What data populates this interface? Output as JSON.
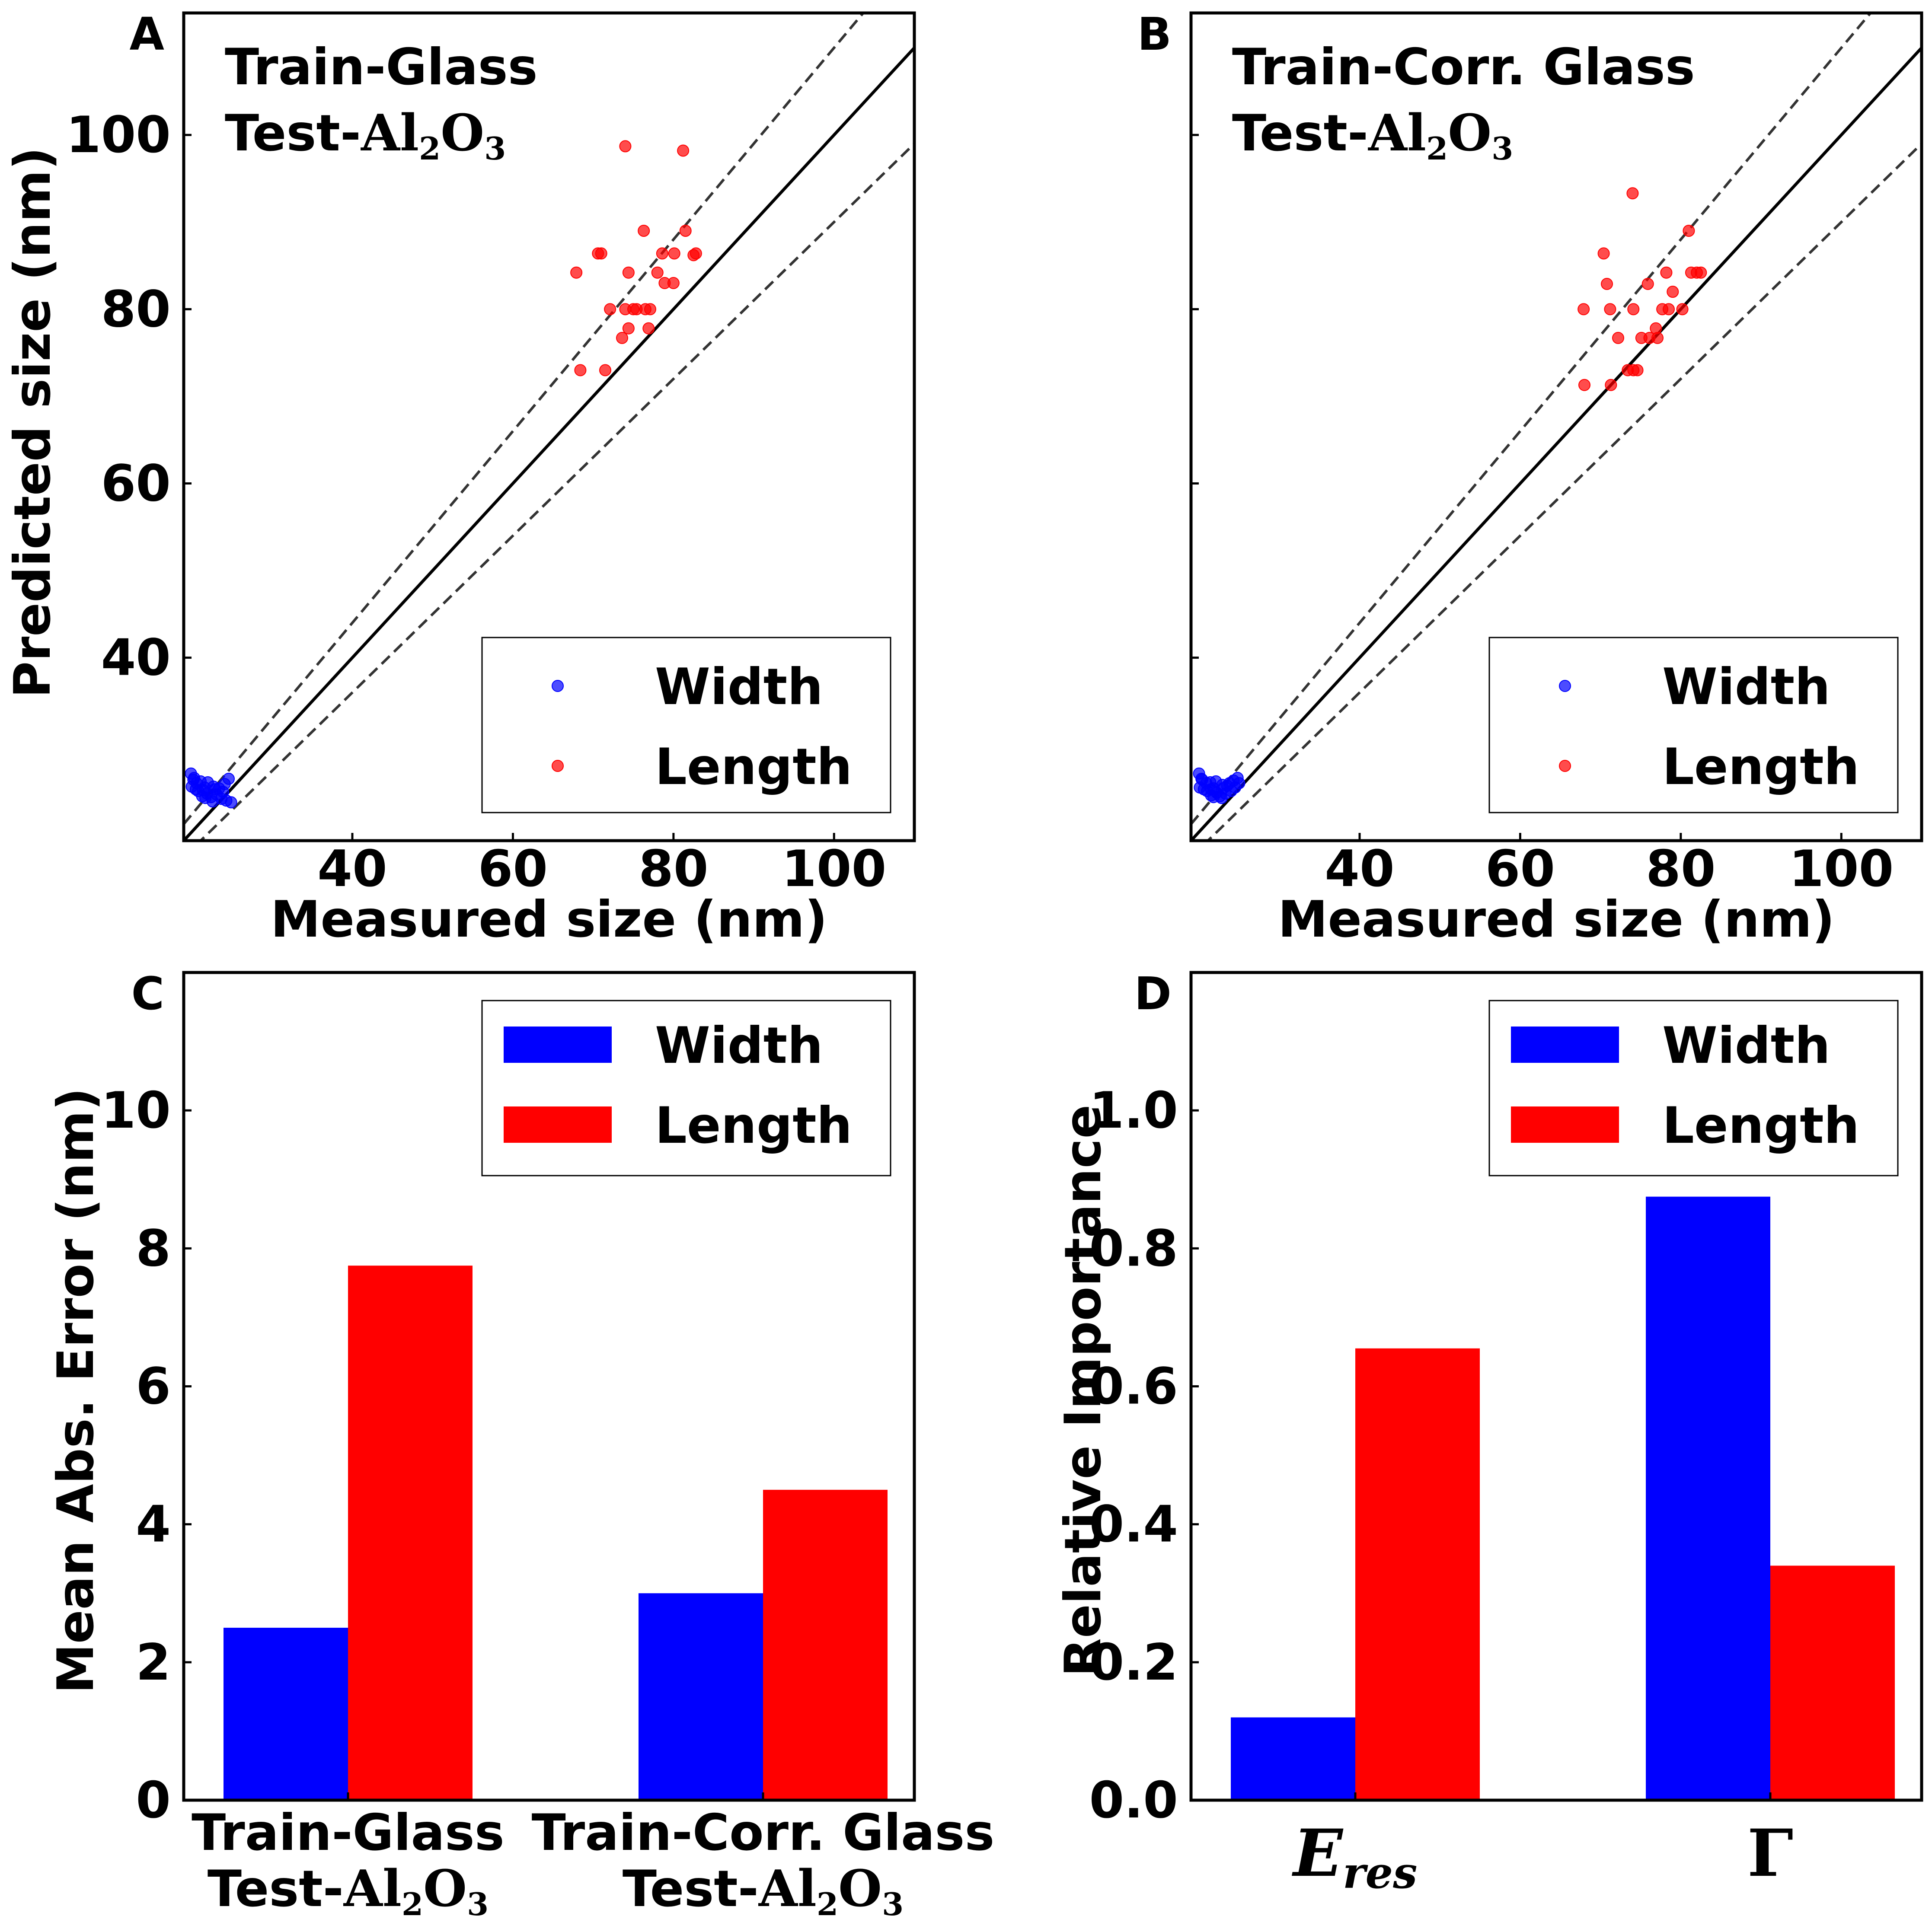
{
  "colors": {
    "width": "#0000ff",
    "length": "#ff0000",
    "axis": "#000000",
    "diag": "#333333"
  },
  "chart_data": [
    {
      "panel": "A",
      "type": "scatter",
      "annotation": {
        "line1": "Train-Glass",
        "line2_prefix": "Test-",
        "line2_formula": "Al2O3"
      },
      "xlabel": "Measured size (nm)",
      "ylabel": "Predicted size (nm)",
      "xlim": [
        19,
        110
      ],
      "ylim": [
        19,
        114
      ],
      "xticks": [
        40,
        60,
        80,
        100
      ],
      "yticks": [
        40,
        60,
        80,
        100
      ],
      "xtick_labels": [
        "40",
        "60",
        "80",
        "100"
      ],
      "ytick_labels": [
        "40",
        "60",
        "80",
        "100"
      ],
      "reference_lines": {
        "identity": "y = x",
        "bands": [
          "y = 1.1x",
          "y = 0.9x"
        ]
      },
      "legend": {
        "position": "lower-right",
        "entries": [
          "Width",
          "Length"
        ]
      },
      "series": [
        {
          "name": "Width",
          "color": "#0000ff",
          "points": [
            [
              19.9,
              26.7
            ],
            [
              20.3,
              26.2
            ],
            [
              20.6,
              25.6
            ],
            [
              21.1,
              25.8
            ],
            [
              20.0,
              25.2
            ],
            [
              20.8,
              24.7
            ],
            [
              21.6,
              25.1
            ],
            [
              21.9,
              24.4
            ],
            [
              22.4,
              24.0
            ],
            [
              21.3,
              24.1
            ],
            [
              22.9,
              24.9
            ],
            [
              23.1,
              24.3
            ],
            [
              23.7,
              23.8
            ],
            [
              24.1,
              25.5
            ],
            [
              24.6,
              26.1
            ],
            [
              24.3,
              23.6
            ],
            [
              20.5,
              24.9
            ],
            [
              22.0,
              25.7
            ],
            [
              23.4,
              25.0
            ],
            [
              21.7,
              23.9
            ],
            [
              22.6,
              23.5
            ],
            [
              20.2,
              26.0
            ],
            [
              23.9,
              24.6
            ],
            [
              21.4,
              24.8
            ],
            [
              22.7,
              25.2
            ],
            [
              24.9,
              23.4
            ]
          ]
        },
        {
          "name": "Length",
          "color": "#ff0000",
          "points": [
            [
              74.0,
              98.7
            ],
            [
              81.2,
              98.2
            ],
            [
              67.9,
              84.2
            ],
            [
              70.6,
              86.4
            ],
            [
              71.0,
              86.4
            ],
            [
              74.4,
              84.2
            ],
            [
              76.3,
              89.0
            ],
            [
              78.0,
              84.2
            ],
            [
              78.6,
              86.4
            ],
            [
              80.1,
              86.4
            ],
            [
              81.5,
              89.0
            ],
            [
              82.5,
              86.2
            ],
            [
              82.8,
              86.4
            ],
            [
              78.9,
              83.0
            ],
            [
              80.0,
              83.0
            ],
            [
              72.1,
              80.0
            ],
            [
              74.0,
              80.0
            ],
            [
              75.0,
              80.0
            ],
            [
              75.4,
              80.0
            ],
            [
              76.5,
              80.0
            ],
            [
              77.1,
              80.0
            ],
            [
              74.4,
              77.8
            ],
            [
              76.9,
              77.8
            ],
            [
              73.6,
              76.7
            ],
            [
              68.4,
              73.0
            ],
            [
              71.5,
              73.0
            ]
          ]
        }
      ]
    },
    {
      "panel": "B",
      "type": "scatter",
      "annotation": {
        "line1": "Train-Corr. Glass",
        "line2_prefix": "Test-",
        "line2_formula": "Al2O3"
      },
      "xlabel": "Measured size (nm)",
      "ylabel": "",
      "xlim": [
        19,
        110
      ],
      "ylim": [
        19,
        114
      ],
      "xticks": [
        40,
        60,
        80,
        100
      ],
      "yticks": [
        40,
        60,
        80,
        100
      ],
      "xtick_labels": [
        "40",
        "60",
        "80",
        "100"
      ],
      "ytick_labels": [],
      "reference_lines": {
        "identity": "y = x",
        "bands": [
          "y = 1.1x",
          "y = 0.9x"
        ]
      },
      "legend": {
        "position": "lower-right",
        "entries": [
          "Width",
          "Length"
        ]
      },
      "series": [
        {
          "name": "Width",
          "color": "#0000ff",
          "points": [
            [
              20.0,
              26.7
            ],
            [
              20.4,
              26.0
            ],
            [
              20.9,
              25.6
            ],
            [
              21.4,
              25.7
            ],
            [
              20.1,
              25.1
            ],
            [
              21.0,
              24.7
            ],
            [
              21.8,
              25.0
            ],
            [
              22.2,
              24.5
            ],
            [
              22.6,
              24.1
            ],
            [
              21.5,
              24.2
            ],
            [
              23.0,
              25.0
            ],
            [
              23.3,
              24.4
            ],
            [
              23.8,
              25.6
            ],
            [
              24.3,
              25.9
            ],
            [
              24.8,
              26.2
            ],
            [
              24.5,
              25.1
            ],
            [
              20.6,
              24.9
            ],
            [
              22.1,
              25.8
            ],
            [
              23.5,
              25.3
            ],
            [
              21.8,
              24.0
            ],
            [
              22.8,
              23.9
            ],
            [
              20.3,
              26.1
            ],
            [
              24.0,
              24.7
            ],
            [
              21.5,
              24.9
            ],
            [
              22.9,
              25.4
            ],
            [
              25.0,
              25.6
            ]
          ]
        },
        {
          "name": "Length",
          "color": "#ff0000",
          "points": [
            [
              74.0,
              93.3
            ],
            [
              81.0,
              89.0
            ],
            [
              70.4,
              86.4
            ],
            [
              70.8,
              82.9
            ],
            [
              75.9,
              82.9
            ],
            [
              78.2,
              84.2
            ],
            [
              81.3,
              84.2
            ],
            [
              82.0,
              84.2
            ],
            [
              82.5,
              84.2
            ],
            [
              67.9,
              80.0
            ],
            [
              71.2,
              80.0
            ],
            [
              74.1,
              80.0
            ],
            [
              77.7,
              80.0
            ],
            [
              78.5,
              80.0
            ],
            [
              80.2,
              80.0
            ],
            [
              76.9,
              77.8
            ],
            [
              72.2,
              76.7
            ],
            [
              75.1,
              76.7
            ],
            [
              76.1,
              76.7
            ],
            [
              77.1,
              76.7
            ],
            [
              73.4,
              73.0
            ],
            [
              74.1,
              73.0
            ],
            [
              74.6,
              73.0
            ],
            [
              68.0,
              71.3
            ],
            [
              71.3,
              71.3
            ],
            [
              79.0,
              82.0
            ]
          ]
        }
      ]
    },
    {
      "panel": "C",
      "type": "bar",
      "ylabel": "Mean Abs. Error (nm)",
      "xlabel": "",
      "ylim": [
        0,
        12
      ],
      "yticks": [
        0,
        2,
        4,
        6,
        8,
        10
      ],
      "ytick_labels": [
        "0",
        "2",
        "4",
        "6",
        "8",
        "10"
      ],
      "categories": [
        {
          "line1": "Train-Glass",
          "line2_prefix": "Test-",
          "line2_formula": "Al2O3"
        },
        {
          "line1": "Train-Corr. Glass",
          "line2_prefix": "Test-",
          "line2_formula": "Al2O3"
        }
      ],
      "legend": {
        "position": "top-right",
        "entries": [
          "Width",
          "Length"
        ]
      },
      "series": [
        {
          "name": "Width",
          "color": "#0000ff",
          "values": [
            2.5,
            3.0
          ]
        },
        {
          "name": "Length",
          "color": "#ff0000",
          "values": [
            7.75,
            4.5
          ]
        }
      ]
    },
    {
      "panel": "D",
      "type": "bar",
      "ylabel": "Relative Importance",
      "xlabel": "",
      "ylim": [
        0,
        1.2
      ],
      "yticks": [
        0,
        0.2,
        0.4,
        0.6,
        0.8,
        1.0
      ],
      "ytick_labels": [
        "0.0",
        "0.2",
        "0.4",
        "0.6",
        "0.8",
        "1.0"
      ],
      "categories": [
        {
          "symbol": "E",
          "subscript": "res"
        },
        {
          "symbol": "Γ",
          "subscript": ""
        }
      ],
      "legend": {
        "position": "top-right",
        "entries": [
          "Width",
          "Length"
        ]
      },
      "series": [
        {
          "name": "Width",
          "color": "#0000ff",
          "values": [
            0.12,
            0.875
          ]
        },
        {
          "name": "Length",
          "color": "#ff0000",
          "values": [
            0.655,
            0.34
          ]
        }
      ]
    }
  ]
}
